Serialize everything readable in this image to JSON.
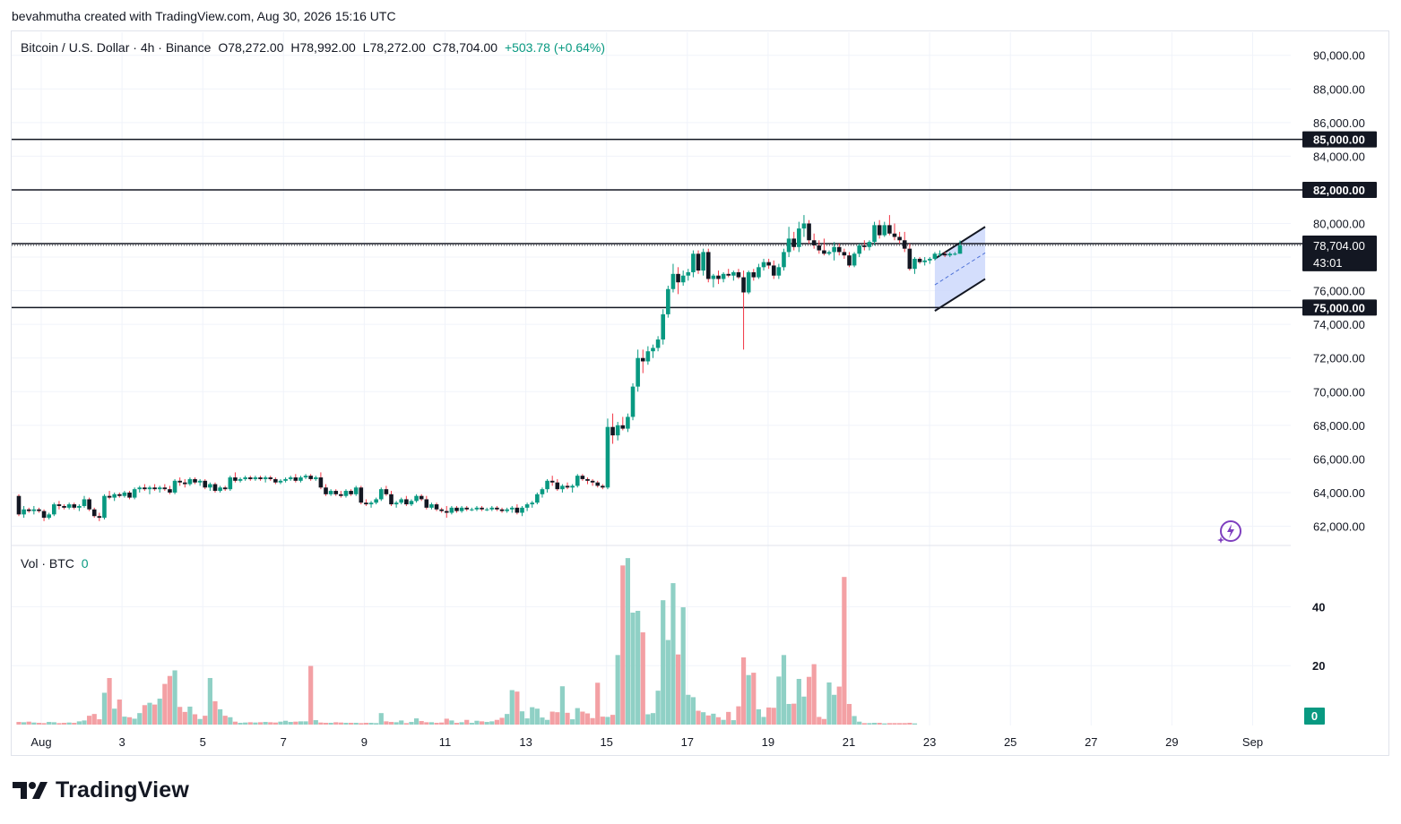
{
  "caption": "bevahmutha created with TradingView.com, Aug 30, 2026 15:16 UTC",
  "legend": {
    "symbol": "Bitcoin / U.S. Dollar · 4h · Binance",
    "open": "O78,272.00",
    "high": "H78,992.00",
    "low": "L78,272.00",
    "close": "C78,704.00",
    "change": "+503.78 (+0.64%)"
  },
  "volume_legend": {
    "label": "Vol · BTC",
    "value": "0"
  },
  "brand": "TradingView",
  "colors": {
    "up": "#089981",
    "down": "#f23645",
    "up_vol": "#8fd0c5",
    "down_vol": "#f3a0a4",
    "line": "#131722",
    "channel_fill": "#c9d6fb"
  },
  "chart_data": {
    "type": "candlestick",
    "title": "Bitcoin / U.S. Dollar · 4h · Binance",
    "interval": "4h",
    "price_axis": {
      "ticks": [
        "90,000.00",
        "88,000.00",
        "86,000.00",
        "84,000.00",
        "80,000.00",
        "76,000.00",
        "74,000.00",
        "72,000.00",
        "70,000.00",
        "68,000.00",
        "66,000.00",
        "64,000.00",
        "62,000.00"
      ],
      "range": [
        61000,
        91500
      ]
    },
    "time_axis": {
      "ticks": [
        "Aug",
        "3",
        "5",
        "7",
        "9",
        "11",
        "13",
        "15",
        "17",
        "19",
        "21",
        "23",
        "25",
        "27",
        "29",
        "Sep"
      ]
    },
    "horizontal_levels": [
      {
        "price": 85000,
        "label": "85,000.00"
      },
      {
        "price": 82000,
        "label": "82,000.00"
      },
      {
        "price": 78800,
        "label": "78,800.00"
      },
      {
        "price": 75000,
        "label": "75,000.00"
      }
    ],
    "current_price": {
      "label": "78,704.00",
      "countdown": "43:01",
      "value": 78704
    },
    "volume_axis": {
      "ticks": [
        "40",
        "20"
      ],
      "current": "0"
    },
    "candles": [
      [
        63800,
        63900,
        62600,
        62700
      ],
      [
        62700,
        63200,
        62500,
        63000
      ],
      [
        63000,
        63100,
        62800,
        62900
      ],
      [
        62900,
        63200,
        62700,
        63000
      ],
      [
        63000,
        63100,
        62800,
        62900
      ],
      [
        62900,
        63000,
        62300,
        62500
      ],
      [
        62500,
        62800,
        62400,
        62700
      ],
      [
        62700,
        63400,
        62600,
        63300
      ],
      [
        63300,
        63500,
        63000,
        63200
      ],
      [
        63200,
        63300,
        63000,
        63100
      ],
      [
        63100,
        63400,
        63000,
        63300
      ],
      [
        63300,
        63400,
        63000,
        63100
      ],
      [
        63100,
        63300,
        62900,
        63200
      ],
      [
        63200,
        63800,
        63100,
        63600
      ],
      [
        63600,
        63700,
        62900,
        63000
      ],
      [
        63000,
        63100,
        62500,
        62600
      ],
      [
        62600,
        62800,
        62300,
        62500
      ],
      [
        62500,
        63900,
        62400,
        63800
      ],
      [
        63800,
        64100,
        63600,
        63700
      ],
      [
        63700,
        64000,
        63500,
        63900
      ],
      [
        63900,
        64000,
        63700,
        63800
      ],
      [
        63800,
        64100,
        63700,
        64000
      ],
      [
        64000,
        64100,
        63600,
        63700
      ],
      [
        63700,
        64300,
        63600,
        64200
      ],
      [
        64200,
        64400,
        64000,
        64300
      ],
      [
        64300,
        64500,
        64100,
        64200
      ],
      [
        64200,
        64400,
        63900,
        64300
      ],
      [
        64300,
        64500,
        64100,
        64200
      ],
      [
        64200,
        64400,
        64000,
        64300
      ],
      [
        64300,
        64500,
        64100,
        64200
      ],
      [
        64200,
        64400,
        63900,
        64000
      ],
      [
        64000,
        64800,
        63900,
        64700
      ],
      [
        64700,
        64900,
        64400,
        64600
      ],
      [
        64600,
        64800,
        64300,
        64500
      ],
      [
        64500,
        64900,
        64400,
        64800
      ],
      [
        64800,
        64900,
        64500,
        64600
      ],
      [
        64600,
        64800,
        64400,
        64700
      ],
      [
        64700,
        64800,
        64200,
        64300
      ],
      [
        64300,
        64600,
        64100,
        64500
      ],
      [
        64500,
        64600,
        64000,
        64100
      ],
      [
        64100,
        64400,
        64000,
        64300
      ],
      [
        64300,
        64400,
        64100,
        64200
      ],
      [
        64200,
        65000,
        64100,
        64900
      ],
      [
        64900,
        65200,
        64600,
        64700
      ],
      [
        64700,
        64900,
        64600,
        64800
      ],
      [
        64800,
        65000,
        64700,
        64900
      ],
      [
        64900,
        65000,
        64700,
        64800
      ],
      [
        64800,
        65000,
        64700,
        64900
      ],
      [
        64900,
        65000,
        64700,
        64800
      ],
      [
        64800,
        65000,
        64600,
        64900
      ],
      [
        64900,
        65000,
        64700,
        64800
      ],
      [
        64800,
        64900,
        64500,
        64600
      ],
      [
        64600,
        64800,
        64500,
        64700
      ],
      [
        64700,
        64900,
        64600,
        64800
      ],
      [
        64800,
        65000,
        64700,
        64900
      ],
      [
        64900,
        65100,
        64600,
        64700
      ],
      [
        64700,
        65000,
        64600,
        64900
      ],
      [
        64900,
        65100,
        64800,
        65000
      ],
      [
        65000,
        65100,
        64700,
        64800
      ],
      [
        64800,
        65000,
        64700,
        64900
      ],
      [
        64900,
        65200,
        64200,
        64300
      ],
      [
        64300,
        64500,
        63800,
        63900
      ],
      [
        63900,
        64200,
        63800,
        64100
      ],
      [
        64100,
        64200,
        63800,
        63900
      ],
      [
        63900,
        64100,
        63700,
        63800
      ],
      [
        63800,
        64200,
        63700,
        64100
      ],
      [
        64100,
        64200,
        63800,
        63900
      ],
      [
        63900,
        64400,
        63800,
        64300
      ],
      [
        64300,
        64400,
        63300,
        63400
      ],
      [
        63400,
        63600,
        63200,
        63300
      ],
      [
        63300,
        63500,
        63100,
        63400
      ],
      [
        63400,
        63700,
        63300,
        63600
      ],
      [
        63600,
        64300,
        63500,
        64200
      ],
      [
        64200,
        64400,
        63800,
        63900
      ],
      [
        63900,
        64100,
        63200,
        63300
      ],
      [
        63300,
        63500,
        63100,
        63400
      ],
      [
        63400,
        63700,
        63300,
        63600
      ],
      [
        63600,
        63800,
        63200,
        63300
      ],
      [
        63300,
        63600,
        63200,
        63500
      ],
      [
        63500,
        63900,
        63400,
        63800
      ],
      [
        63800,
        63900,
        63500,
        63600
      ],
      [
        63600,
        63800,
        63000,
        63100
      ],
      [
        63100,
        63400,
        63000,
        63300
      ],
      [
        63300,
        63400,
        62900,
        63000
      ],
      [
        63000,
        63100,
        62800,
        62900
      ],
      [
        62900,
        63200,
        62500,
        62800
      ],
      [
        62800,
        63200,
        62700,
        63100
      ],
      [
        63100,
        63200,
        62800,
        62900
      ],
      [
        62900,
        63200,
        62800,
        63100
      ],
      [
        63100,
        63200,
        62900,
        63000
      ],
      [
        63000,
        63100,
        62900,
        63000
      ],
      [
        63000,
        63200,
        62900,
        63100
      ],
      [
        63100,
        63200,
        62900,
        63000
      ],
      [
        63000,
        63100,
        62900,
        63000
      ],
      [
        63000,
        63200,
        62900,
        63100
      ],
      [
        63100,
        63200,
        62900,
        63000
      ],
      [
        63000,
        63100,
        62800,
        62900
      ],
      [
        62900,
        63100,
        62800,
        63000
      ],
      [
        63000,
        63200,
        62800,
        63100
      ],
      [
        63100,
        63300,
        62700,
        62800
      ],
      [
        62800,
        63200,
        62600,
        63100
      ],
      [
        63100,
        63400,
        62900,
        63300
      ],
      [
        63300,
        63500,
        63100,
        63400
      ],
      [
        63400,
        64000,
        63300,
        63900
      ],
      [
        63900,
        64300,
        63700,
        64200
      ],
      [
        64200,
        64800,
        64000,
        64700
      ],
      [
        64700,
        65000,
        64400,
        64600
      ],
      [
        64600,
        64800,
        64100,
        64200
      ],
      [
        64200,
        64500,
        64000,
        64400
      ],
      [
        64400,
        64600,
        64200,
        64300
      ],
      [
        64300,
        64500,
        64000,
        64400
      ],
      [
        64400,
        65100,
        64300,
        65000
      ],
      [
        65000,
        65100,
        64700,
        64800
      ],
      [
        64800,
        64900,
        64500,
        64700
      ],
      [
        64700,
        64800,
        64400,
        64600
      ],
      [
        64600,
        64700,
        64300,
        64400
      ],
      [
        64400,
        64500,
        64200,
        64300
      ],
      [
        64300,
        68400,
        64200,
        67900
      ],
      [
        67900,
        68700,
        66900,
        67400
      ],
      [
        67400,
        68200,
        67100,
        68000
      ],
      [
        68000,
        68500,
        67700,
        67800
      ],
      [
        67800,
        68700,
        67600,
        68500
      ],
      [
        68500,
        70500,
        68300,
        70300
      ],
      [
        70300,
        72500,
        70000,
        72000
      ],
      [
        72000,
        72500,
        71100,
        71800
      ],
      [
        71800,
        72700,
        71600,
        72400
      ],
      [
        72400,
        72800,
        72000,
        72600
      ],
      [
        72600,
        73300,
        72400,
        73100
      ],
      [
        73100,
        74900,
        72800,
        74600
      ],
      [
        74600,
        76300,
        74400,
        76100
      ],
      [
        76100,
        77600,
        75900,
        77000
      ],
      [
        77000,
        77400,
        75800,
        76500
      ],
      [
        76500,
        77200,
        76300,
        76900
      ],
      [
        76900,
        77300,
        76600,
        77100
      ],
      [
        77100,
        78400,
        76800,
        78200
      ],
      [
        78200,
        78400,
        77000,
        77200
      ],
      [
        77200,
        78500,
        76900,
        78300
      ],
      [
        78300,
        78500,
        76500,
        76700
      ],
      [
        76700,
        77000,
        76200,
        76900
      ],
      [
        76900,
        77200,
        76400,
        76700
      ],
      [
        76700,
        77100,
        76500,
        77000
      ],
      [
        77000,
        77300,
        76800,
        76900
      ],
      [
        76900,
        77200,
        76600,
        77100
      ],
      [
        77100,
        77300,
        76700,
        76800
      ],
      [
        76800,
        77200,
        72500,
        75900
      ],
      [
        75900,
        77200,
        75800,
        77100
      ],
      [
        77100,
        77300,
        76600,
        76800
      ],
      [
        76800,
        77600,
        76700,
        77400
      ],
      [
        77400,
        77900,
        77200,
        77700
      ],
      [
        77700,
        77900,
        77300,
        77500
      ],
      [
        77500,
        77800,
        76700,
        76900
      ],
      [
        76900,
        77600,
        76700,
        77400
      ],
      [
        77400,
        78500,
        77200,
        78300
      ],
      [
        78300,
        79800,
        78000,
        79100
      ],
      [
        79100,
        79500,
        78400,
        78600
      ],
      [
        78600,
        80100,
        78300,
        79700
      ],
      [
        79700,
        80500,
        79200,
        80000
      ],
      [
        80000,
        80200,
        78800,
        79000
      ],
      [
        79000,
        79400,
        78500,
        78700
      ],
      [
        78700,
        79000,
        78200,
        78400
      ],
      [
        78400,
        79100,
        78100,
        78200
      ],
      [
        78200,
        78400,
        78100,
        78300
      ],
      [
        78300,
        78900,
        77800,
        78600
      ],
      [
        78600,
        78800,
        78100,
        78300
      ],
      [
        78300,
        78500,
        77900,
        78100
      ],
      [
        78100,
        78300,
        77400,
        77500
      ],
      [
        77500,
        78300,
        77400,
        78200
      ],
      [
        78200,
        78800,
        78000,
        78700
      ],
      [
        78700,
        79000,
        78400,
        78600
      ],
      [
        78600,
        79000,
        78400,
        78900
      ],
      [
        78900,
        80100,
        78700,
        79900
      ],
      [
        79900,
        80200,
        79100,
        79300
      ],
      [
        79300,
        80100,
        79200,
        79900
      ],
      [
        79900,
        80500,
        79300,
        79400
      ],
      [
        79400,
        80000,
        79000,
        79200
      ],
      [
        79200,
        79500,
        78800,
        79000
      ],
      [
        79000,
        79500,
        78300,
        78500
      ],
      [
        78500,
        78800,
        77200,
        77300
      ],
      [
        77300,
        78000,
        77000,
        77900
      ],
      [
        77900,
        78000,
        77600,
        77700
      ],
      [
        77700,
        78000,
        77500,
        77800
      ],
      [
        77800,
        78000,
        77600,
        77900
      ],
      [
        77900,
        78300,
        77800,
        78200
      ],
      [
        78200,
        78400,
        78000,
        78200
      ],
      [
        78200,
        78300,
        78000,
        78100
      ],
      [
        78100,
        78300,
        78000,
        78200
      ],
      [
        78200,
        78300,
        78100,
        78200
      ],
      [
        78200,
        78990,
        78200,
        78700
      ]
    ],
    "volumes": [
      0.9,
      0.8,
      1.0,
      0.7,
      0.6,
      0.5,
      0.9,
      0.8,
      0.5,
      0.6,
      0.7,
      0.6,
      1.1,
      1.4,
      3.0,
      3.6,
      1.8,
      10.8,
      15.8,
      5.4,
      8.5,
      2.7,
      2.5,
      2.0,
      3.9,
      6.6,
      7.4,
      6.8,
      8.8,
      13.8,
      16.5,
      18.4,
      6.0,
      4.3,
      6.1,
      3.5,
      1.9,
      3.0,
      15.8,
      7.9,
      5.2,
      3.0,
      2.5,
      1.0,
      0.6,
      0.7,
      0.8,
      0.7,
      0.8,
      0.9,
      0.8,
      0.7,
      1.0,
      1.3,
      0.9,
      1.0,
      1.1,
      1.1,
      19.9,
      1.5,
      0.7,
      0.6,
      0.6,
      0.8,
      0.7,
      0.6,
      0.6,
      0.6,
      0.5,
      0.6,
      0.6,
      0.5,
      3.9,
      1.1,
      0.9,
      0.8,
      1.4,
      0.5,
      0.9,
      2.1,
      1.2,
      0.8,
      0.8,
      0.6,
      0.7,
      2.0,
      1.4,
      0.6,
      0.8,
      1.6,
      0.6,
      1.3,
      1.1,
      0.9,
      1.1,
      1.6,
      2.3,
      3.6,
      11.7,
      11.2,
      4.5,
      2.1,
      5.9,
      5.4,
      2.4,
      1.6,
      4.4,
      4.2,
      13.0,
      4.0,
      1.8,
      5.6,
      4.4,
      3.8,
      2.2,
      14.2,
      2.7,
      2.6,
      3.3,
      23.6,
      54.0,
      56.5,
      38.0,
      38.6,
      31.3,
      3.5,
      3.9,
      11.5,
      42.2,
      28.7,
      48.0,
      23.8,
      39.8,
      10.1,
      9.3,
      4.7,
      4.2,
      3.1,
      3.7,
      2.5,
      1.6,
      4.3,
      1.5,
      6.2,
      22.8,
      16.8,
      17.6,
      5.2,
      2.6,
      5.8,
      5.7,
      16.3,
      23.6,
      7.0,
      7.1,
      15.5,
      9.5,
      16.2,
      20.5,
      2.6,
      1.9,
      14.3,
      10.1,
      12.9,
      50.1,
      7.0,
      2.9,
      1.0,
      0.5,
      0.5,
      0.6,
      0.6,
      0.4,
      0.5,
      0.5,
      0.5,
      0.5,
      0.6,
      0.4
    ],
    "channel": {
      "lower": [
        [
          0,
          74800
        ],
        [
          10,
          76700
        ]
      ],
      "upper": [
        [
          0,
          77900
        ],
        [
          10,
          79800
        ]
      ]
    }
  }
}
